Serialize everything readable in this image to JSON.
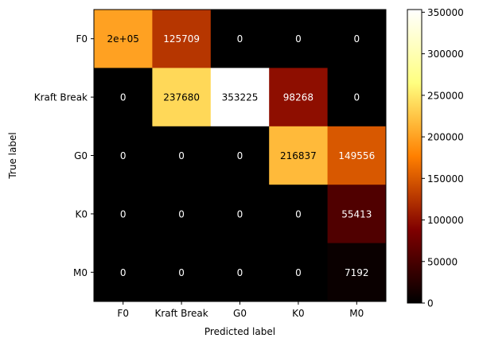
{
  "chart_data": {
    "type": "heatmap",
    "title": "",
    "xlabel": "Predicted label",
    "ylabel": "True label",
    "x_categories": [
      "F0",
      "Kraft Break",
      "G0",
      "K0",
      "M0"
    ],
    "y_categories": [
      "F0",
      "Kraft Break",
      "G0",
      "K0",
      "M0"
    ],
    "values": [
      [
        200000,
        125709,
        0,
        0,
        0
      ],
      [
        0,
        237680,
        353225,
        98268,
        0
      ],
      [
        0,
        0,
        0,
        216837,
        149556
      ],
      [
        0,
        0,
        0,
        0,
        55413
      ],
      [
        0,
        0,
        0,
        0,
        7192
      ]
    ],
    "cell_labels": [
      [
        "2e+05",
        "125709",
        "0",
        "0",
        "0"
      ],
      [
        "0",
        "237680",
        "353225",
        "98268",
        "0"
      ],
      [
        "0",
        "0",
        "0",
        "216837",
        "149556"
      ],
      [
        "0",
        "0",
        "0",
        "0",
        "55413"
      ],
      [
        "0",
        "0",
        "0",
        "0",
        "7192"
      ]
    ],
    "colormap": "afmhot",
    "color_range": [
      0,
      353225
    ],
    "colorbar_ticks": [
      0,
      50000,
      100000,
      150000,
      200000,
      250000,
      300000,
      350000
    ],
    "grid": false,
    "text_color_dark": "#000000",
    "text_color_light": "#ffffff"
  }
}
